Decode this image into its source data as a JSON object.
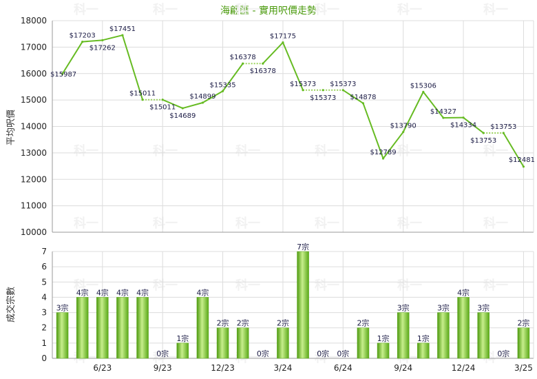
{
  "chart_data": [
    {
      "type": "line",
      "title": "海翩匯 - 實用呎價走勢",
      "ylabel": "平均呎價",
      "ylim": [
        10000,
        18000
      ],
      "y_ticks": [
        10000,
        11000,
        12000,
        13000,
        14000,
        15000,
        16000,
        17000,
        18000
      ],
      "grid": true,
      "point_labels": [
        "$15987",
        "$17203",
        "$17262",
        "$17451",
        "$15011",
        "$15011",
        "$14689",
        "$14899",
        "$15335",
        "$16378",
        "$16378",
        "$17175",
        "$15373",
        "$15373",
        "$15373",
        "$14878",
        "$12789",
        "$13790",
        "$15306",
        "$14327",
        "$14334",
        "$13753",
        "$13753",
        "$12481"
      ],
      "series": [
        {
          "values": [
            15987,
            17203,
            17262,
            17451,
            15011,
            15011,
            14689,
            14899,
            15335,
            16378,
            16378,
            17175,
            15373,
            15373,
            15373,
            14878,
            12789,
            13790,
            15306,
            14327,
            14334,
            13753,
            13753,
            12481
          ],
          "carried_forward": [
            false,
            false,
            false,
            false,
            false,
            true,
            false,
            false,
            false,
            false,
            true,
            false,
            false,
            true,
            true,
            false,
            false,
            false,
            false,
            false,
            false,
            false,
            true,
            false
          ]
        }
      ]
    },
    {
      "type": "bar",
      "ylabel": "成交宗數",
      "ylim": [
        0,
        7
      ],
      "y_ticks": [
        0,
        1,
        2,
        3,
        4,
        5,
        6,
        7
      ],
      "grid": true,
      "categories": [
        "",
        "",
        "6/23",
        "",
        "",
        "9/23",
        "",
        "",
        "12/23",
        "",
        "",
        "3/24",
        "",
        "",
        "6/24",
        "",
        "",
        "9/24",
        "",
        "",
        "12/24",
        "",
        "",
        "3/25"
      ],
      "value_labels": [
        "3宗",
        "4宗",
        "4宗",
        "4宗",
        "4宗",
        "0宗",
        "1宗",
        "4宗",
        "2宗",
        "2宗",
        "0宗",
        "2宗",
        "7宗",
        "0宗",
        "0宗",
        "2宗",
        "1宗",
        "3宗",
        "1宗",
        "3宗",
        "4宗",
        "3宗",
        "0宗",
        "2宗"
      ],
      "values": [
        3,
        4,
        4,
        4,
        4,
        0,
        1,
        4,
        2,
        2,
        0,
        2,
        7,
        0,
        0,
        2,
        1,
        3,
        1,
        3,
        4,
        3,
        0,
        2
      ]
    }
  ],
  "watermark": "科一",
  "colors": {
    "line": "#66bb22",
    "carried_line": "#9ad35a",
    "title": "#4a9a0c",
    "bar_light": "#c7ee8c",
    "bar_dark": "#4e9a10",
    "grid": "#dcdcdc",
    "axis": "#999999",
    "label": "#1a1a44"
  }
}
